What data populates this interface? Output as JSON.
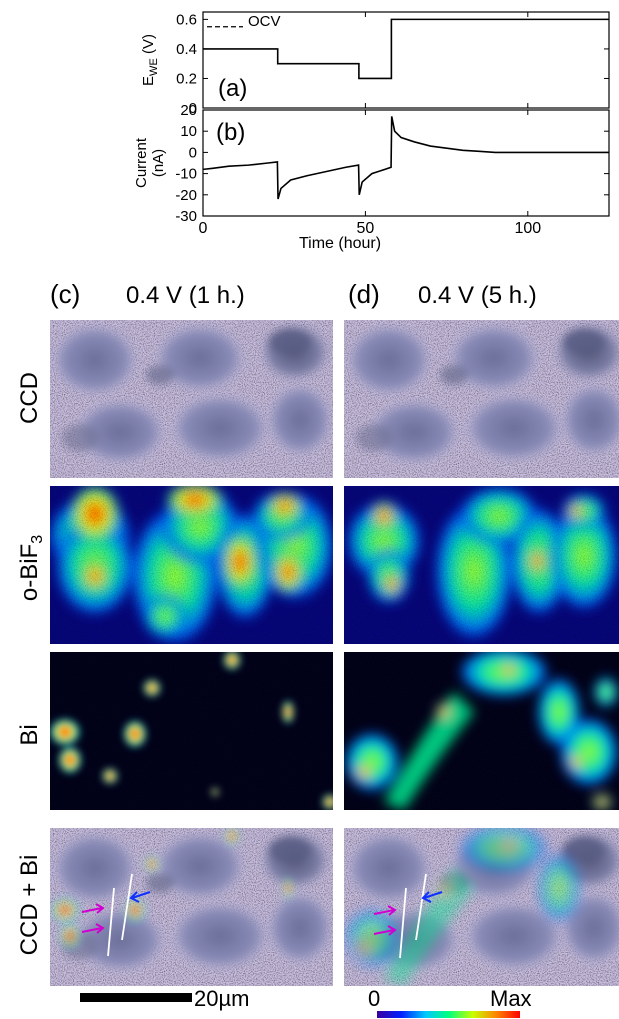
{
  "chart_data": [
    {
      "type": "line",
      "panel": "(a)",
      "ylabel_main": "E",
      "ylabel_sub": "WE",
      "ylabel_unit": " (V)",
      "xlim": [
        0,
        125
      ],
      "ylim": [
        0,
        0.65
      ],
      "yticks": [
        "0",
        "0.2",
        "0.4",
        "0.6"
      ],
      "yticks_num": [
        0,
        0.2,
        0.4,
        0.6
      ],
      "ocv_label": "OCV",
      "ocv_value": 0.55,
      "series": [
        {
          "x": [
            0,
            23,
            23,
            48,
            48,
            58,
            58,
            125
          ],
          "y": [
            0.4,
            0.4,
            0.3,
            0.3,
            0.2,
            0.2,
            0.6,
            0.6
          ]
        }
      ]
    },
    {
      "type": "line",
      "panel": "(b)",
      "ylabel_line1": "Current",
      "ylabel_line2": "(nA)",
      "xlabel": "Time (hour)",
      "xlim": [
        0,
        125
      ],
      "ylim": [
        -30,
        20
      ],
      "xticks": [
        "0",
        "50",
        "100"
      ],
      "xticks_num": [
        0,
        50,
        100
      ],
      "yticks": [
        "-30",
        "-20",
        "-10",
        "0",
        "10",
        "20"
      ],
      "yticks_num": [
        -30,
        -20,
        -10,
        0,
        10,
        20
      ],
      "series": [
        {
          "x": [
            0,
            3,
            8,
            14,
            20,
            22.9,
            23.1,
            24,
            27,
            32,
            38,
            44,
            47.9,
            48.1,
            49,
            52,
            56,
            57.9,
            58.1,
            59,
            61,
            65,
            70,
            75,
            80,
            85,
            90,
            95,
            100,
            110,
            125
          ],
          "y": [
            -8,
            -7.5,
            -6.5,
            -6,
            -5,
            -4.5,
            -22,
            -17,
            -13,
            -11,
            -9,
            -7,
            -6,
            -20,
            -14,
            -10,
            -8,
            -7,
            17,
            10,
            7,
            5,
            3,
            2,
            1,
            0.5,
            0,
            0,
            0,
            0,
            0
          ]
        }
      ]
    }
  ],
  "panels": {
    "c_label": "(c)",
    "c_title": "0.4 V (1 h.)",
    "d_label": "(d)",
    "d_title": "0.4 V (5 h.)"
  },
  "row_labels": {
    "ccd": "CCD",
    "obif_main": "o-BiF",
    "obif_sub": "3",
    "bi": "Bi",
    "ccd_bi": "CCD + Bi"
  },
  "scale_bar_label": "20µm",
  "colorbar": {
    "min_label": "0",
    "max_label": "Max",
    "colors": [
      "#3a00a0",
      "#0020ff",
      "#00c8ff",
      "#00ff80",
      "#c8ff00",
      "#ff8000",
      "#ff0000"
    ]
  }
}
